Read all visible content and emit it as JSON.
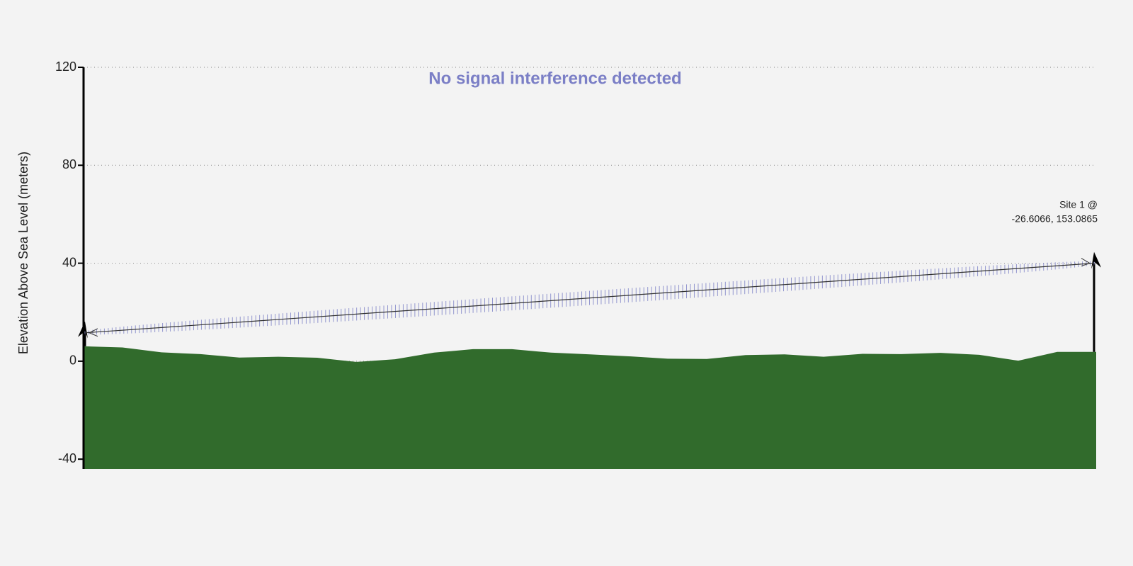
{
  "chart_data": {
    "type": "area",
    "title": "No signal interference detected",
    "y_label": "Elevation Above Sea Level (meters)",
    "categories": [
      null,
      null,
      null,
      null,
      null,
      null,
      null,
      null,
      null,
      null,
      null,
      null,
      null,
      null,
      null,
      null,
      null,
      null,
      null,
      null,
      null,
      null,
      null,
      null,
      null,
      null,
      null
    ],
    "series": [
      {
        "name": null,
        "color": "#316b2c",
        "values": [
          6.1,
          5.6,
          3.6,
          2.9,
          1.5,
          1.8,
          1.4,
          -0.3,
          0.8,
          3.5,
          4.9,
          4.9,
          3.5,
          2.8,
          2.0,
          1.0,
          0.9,
          2.5,
          2.8,
          1.8,
          3.0,
          2.9,
          3.4,
          2.6,
          0.2,
          3.8,
          3.8
        ]
      }
    ],
    "sites": [
      {
        "elevation": 11.6
      },
      {
        "elevation": 40,
        "label_lines": [
          "Site 1 @",
          "-26.6066, 153.0865"
        ]
      }
    ],
    "link_color": "#7b7fc6",
    "ylim": [
      -44,
      120
    ],
    "yticks": [
      -40,
      0,
      40,
      80,
      120
    ],
    "grid": true
  }
}
